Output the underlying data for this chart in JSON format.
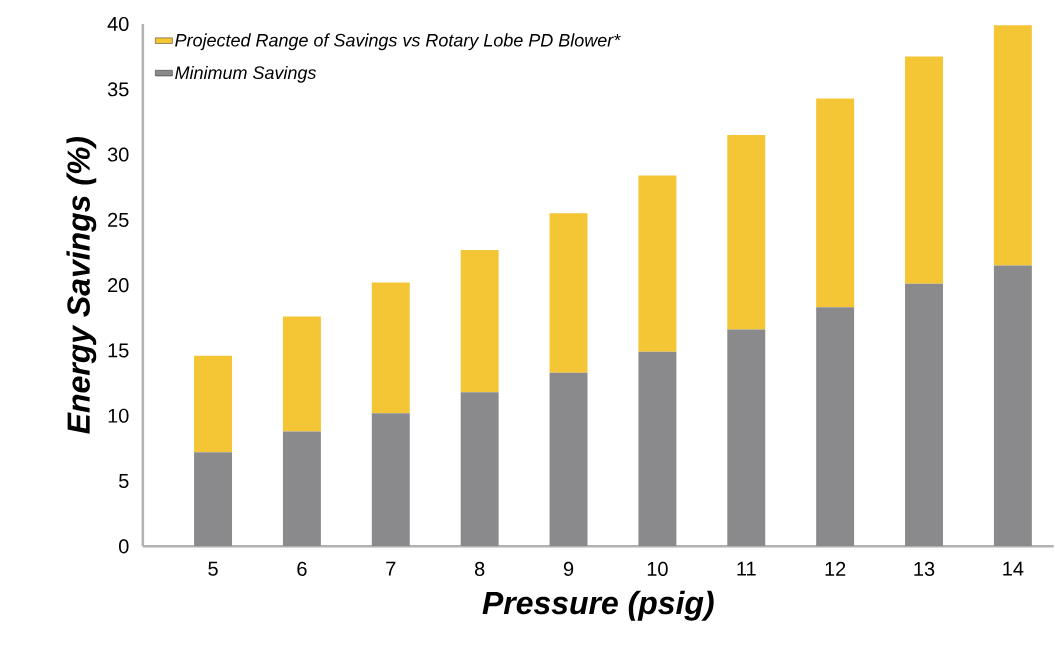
{
  "chart_data": {
    "type": "bar",
    "stacked": true,
    "xlabel": "Pressure (psig)",
    "ylabel": "Energy Savings (%)",
    "categories": [
      "5",
      "6",
      "7",
      "8",
      "9",
      "10",
      "11",
      "12",
      "13",
      "14"
    ],
    "series": [
      {
        "name": "Minimum Savings",
        "color": "#8a8a8c",
        "values": [
          7.2,
          8.8,
          10.2,
          11.8,
          13.3,
          14.9,
          16.6,
          18.3,
          20.1,
          21.5
        ]
      },
      {
        "name": "Projected Range of Savings vs Rotary Lobe PD Blower*",
        "color": "#f4c534",
        "values": [
          7.4,
          8.8,
          10.0,
          10.9,
          12.2,
          13.5,
          14.9,
          16.0,
          17.4,
          18.4
        ]
      }
    ],
    "ylim": [
      0,
      40
    ],
    "yticks": [
      0,
      5,
      10,
      15,
      20,
      25,
      30,
      35,
      40
    ],
    "grid": false,
    "legend": "top left"
  }
}
